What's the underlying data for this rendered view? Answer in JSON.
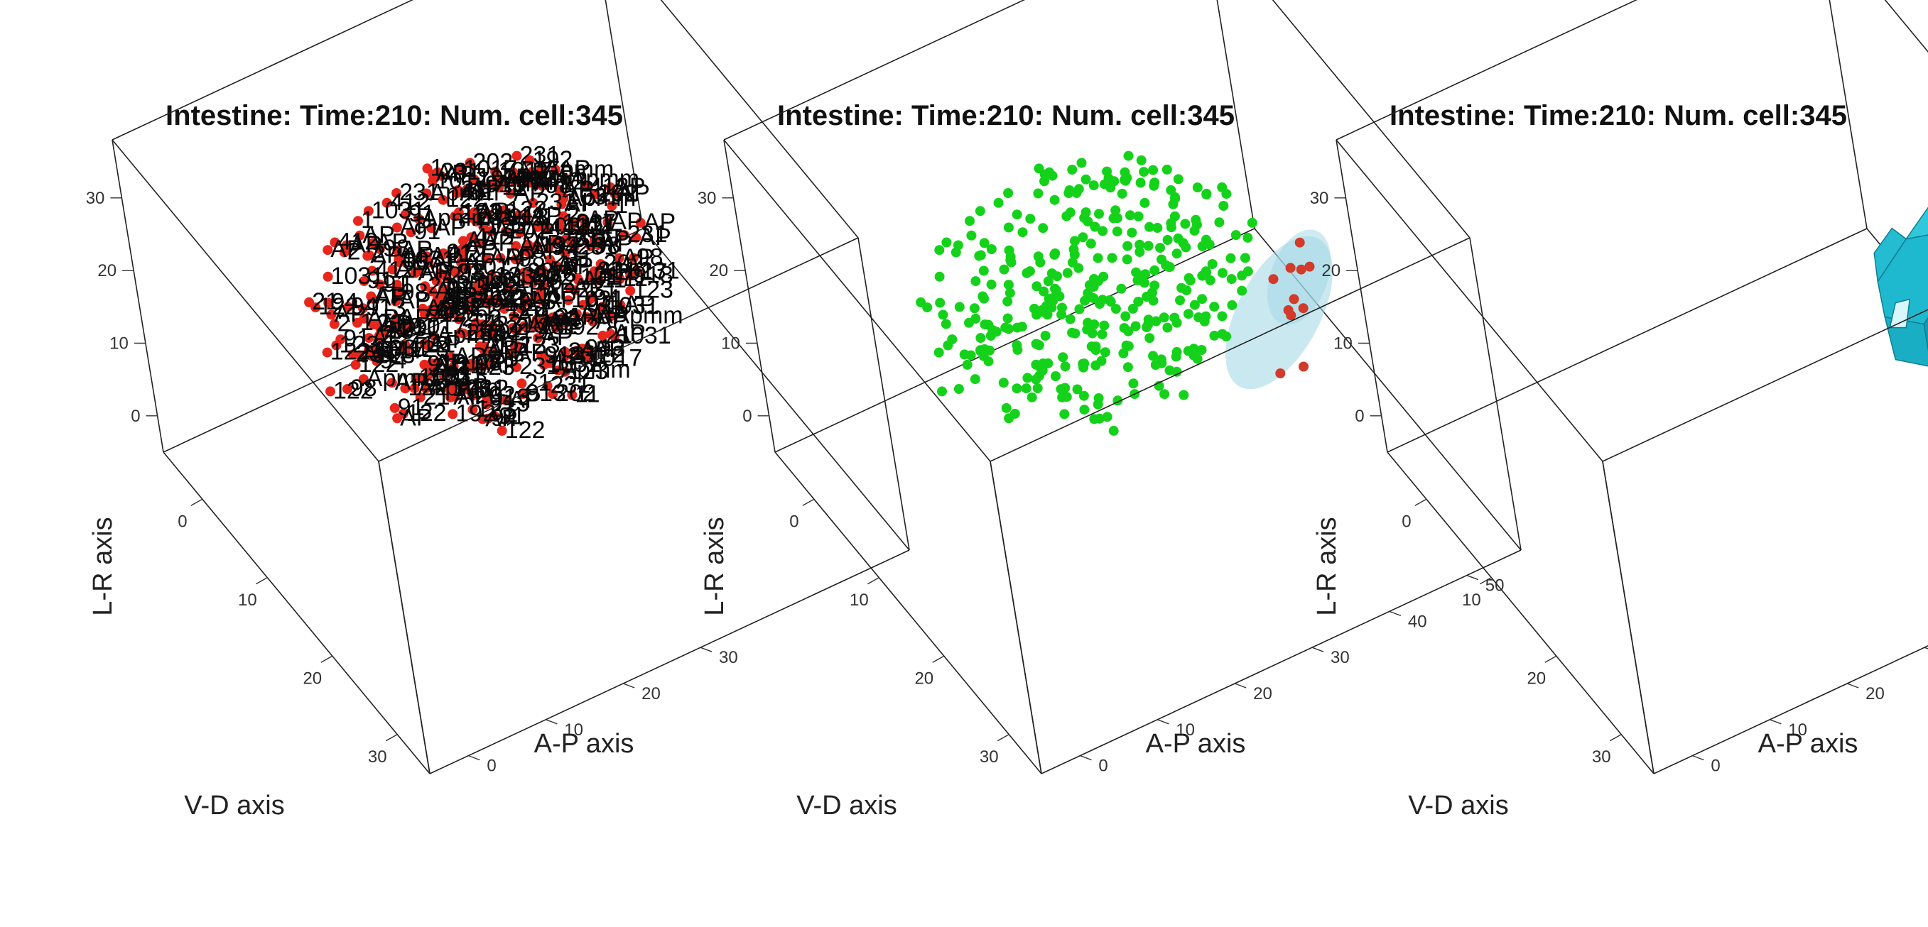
{
  "chart_data": [
    {
      "type": "scatter3d",
      "title": "Intestine: Time:210: Num. cell:345",
      "xlabel": "V-D axis",
      "ylabel": "A-P axis",
      "zlabel": "L-R axis",
      "xticks": [
        "0",
        "10",
        "20",
        "30"
      ],
      "yticks": [
        "0",
        "10",
        "20",
        "30",
        "40",
        "50"
      ],
      "zticks": [
        "0",
        "10",
        "20",
        "30"
      ],
      "yticks_visible": [
        "0",
        "10",
        "20",
        "30"
      ],
      "num_cells": 345,
      "point_color": "#e8261c",
      "label_color": "#000000",
      "cell_labels_visible": [
        "AP",
        "Apmm",
        "AP",
        "AP",
        "AP",
        "AP",
        "AP",
        "AP",
        "AP",
        "AP",
        "122",
        "231",
        "412",
        "1017",
        "1031",
        "11",
        "21",
        "91",
        "231",
        "98",
        "123",
        "913",
        "192",
        "202",
        "2",
        "94",
        "1"
      ]
    },
    {
      "type": "scatter3d",
      "title": "Intestine: Time:210: Num. cell:345",
      "xlabel": "V-D axis",
      "ylabel": "A-P axis",
      "zlabel": "L-R axis",
      "xticks": [
        "0",
        "10",
        "20",
        "30"
      ],
      "yticks": [
        "0",
        "10",
        "20",
        "30",
        "40",
        "50"
      ],
      "zticks": [
        "0",
        "10",
        "20",
        "30"
      ],
      "num_cells": 345,
      "point_color": "#14d21a",
      "highlight_color": "#d23a2a",
      "highlight_count": 11,
      "surface_color": "#9fd6e3"
    },
    {
      "type": "surface3d",
      "title": "Intestine: Time:210: Num. cell:345",
      "xlabel": "V-D axis",
      "ylabel": "A-P axis",
      "zlabel": "L-R axis",
      "xticks": [
        "0",
        "10",
        "20",
        "30"
      ],
      "yticks": [
        "0",
        "10",
        "20",
        "30",
        "40",
        "50"
      ],
      "zticks": [
        "0",
        "10",
        "20",
        "30"
      ],
      "surface_color": "#1eb6cc"
    }
  ]
}
